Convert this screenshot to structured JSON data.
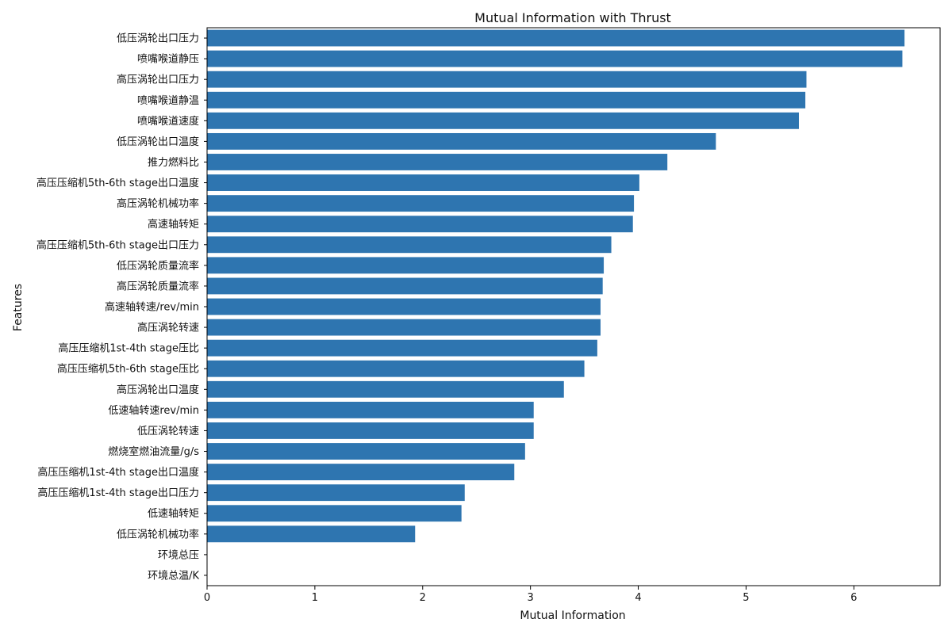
{
  "chart_data": {
    "type": "bar",
    "orientation": "horizontal",
    "title": "Mutual Information with Thrust",
    "xlabel": "Mutual Information",
    "ylabel": "Features",
    "xlim": [
      0,
      6.8
    ],
    "xticks": [
      0,
      1,
      2,
      3,
      4,
      5,
      6
    ],
    "bar_color": "#2e75b0",
    "categories": [
      "低压涡轮出口压力",
      "喷嘴喉道静压",
      "高压涡轮出口压力",
      "喷嘴喉道静温",
      "喷嘴喉道速度",
      "低压涡轮出口温度",
      "推力燃料比",
      "高压压缩机5th-6th stage出口温度",
      "高压涡轮机械功率",
      "高速轴转矩",
      "高压压缩机5th-6th stage出口压力",
      "低压涡轮质量流率",
      "高压涡轮质量流率",
      "高速轴转速/rev/min",
      "高压涡轮转速",
      "高压压缩机1st-4th stage压比",
      "高压压缩机5th-6th stage压比",
      "高压涡轮出口温度",
      "低速轴转速rev/min",
      "低压涡轮转速",
      "燃烧室燃油流量/g/s",
      "高压压缩机1st-4th stage出口温度",
      "高压压缩机1st-4th stage出口压力",
      "低速轴转矩",
      "低压涡轮机械功率",
      "环境总压",
      "环境总温/K"
    ],
    "values": [
      6.47,
      6.45,
      5.56,
      5.55,
      5.49,
      4.72,
      4.27,
      4.01,
      3.96,
      3.95,
      3.75,
      3.68,
      3.67,
      3.65,
      3.65,
      3.62,
      3.5,
      3.31,
      3.03,
      3.03,
      2.95,
      2.85,
      2.39,
      2.36,
      1.93,
      0.0,
      0.0
    ]
  }
}
